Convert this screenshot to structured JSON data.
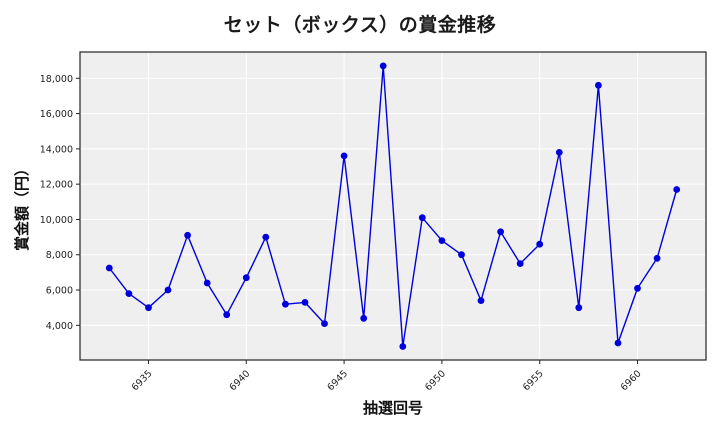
{
  "chart_data": {
    "type": "line",
    "title": "セット（ボックス）の賞金推移",
    "xlabel": "抽選回号",
    "ylabel": "賞金額（円）",
    "x": [
      6933,
      6934,
      6935,
      6936,
      6937,
      6938,
      6939,
      6940,
      6941,
      6942,
      6943,
      6944,
      6945,
      6946,
      6947,
      6948,
      6949,
      6950,
      6951,
      6952,
      6953,
      6954,
      6955,
      6956,
      6957,
      6958,
      6959,
      6960,
      6961,
      6962
    ],
    "series": [
      {
        "name": "賞金額",
        "color": "#0000dd",
        "values": [
          7250,
          5800,
          5000,
          6000,
          9100,
          6400,
          4600,
          6700,
          9000,
          5200,
          5300,
          4100,
          13600,
          4400,
          18700,
          2800,
          10100,
          8800,
          8000,
          5400,
          9300,
          7500,
          8600,
          13800,
          5000,
          17600,
          3000,
          6100,
          7800,
          11700
        ]
      }
    ],
    "xticks": [
      6935,
      6940,
      6945,
      6950,
      6955,
      6960
    ],
    "xtick_labels": [
      "6935",
      "6940",
      "6945",
      "6950",
      "6955",
      "6960"
    ],
    "yticks": [
      4000,
      6000,
      8000,
      10000,
      12000,
      14000,
      16000,
      18000
    ],
    "ytick_labels": [
      "4,000",
      "6,000",
      "8,000",
      "10,000",
      "12,000",
      "14,000",
      "16,000",
      "18,000"
    ],
    "xlim": [
      6931.5,
      6963.5
    ],
    "ylim": [
      2035,
      19490
    ],
    "grid": true,
    "legend": null,
    "plot_background": "#efeff0",
    "grid_color": "#ffffff"
  }
}
